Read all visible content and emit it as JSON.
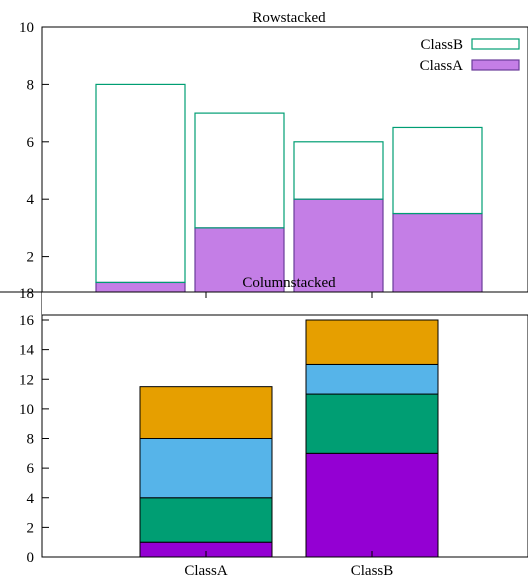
{
  "chart_data": [
    {
      "type": "bar",
      "stacking": "row",
      "title": "Rowstacked",
      "ylim": [
        0,
        10
      ],
      "yticks": [
        2,
        4,
        6,
        8,
        10
      ],
      "grid": false,
      "legend_position": "top-right",
      "bar_count": 4,
      "series": [
        {
          "name": "ClassA",
          "values": [
            1.1,
            3,
            4,
            3.5
          ],
          "fill": "#c47ee6",
          "stroke": "#6a3d9a",
          "filled": true
        },
        {
          "name": "ClassB",
          "values": [
            6.9,
            4,
            2,
            3
          ],
          "fill": "none",
          "stroke": "#009e73",
          "filled": false
        }
      ]
    },
    {
      "type": "bar",
      "stacking": "column",
      "title": "Columnstacked",
      "categories": [
        "ClassA",
        "ClassB"
      ],
      "ylim": [
        0,
        16
      ],
      "yticks": [
        0,
        2,
        4,
        6,
        8,
        10,
        12,
        14,
        16,
        18
      ],
      "grid": false,
      "series": [
        {
          "values": [
            1,
            7
          ],
          "color": "#9400d3"
        },
        {
          "values": [
            3,
            4
          ],
          "color": "#009e73"
        },
        {
          "values": [
            4,
            2
          ],
          "color": "#56b4e9"
        },
        {
          "values": [
            3.5,
            3
          ],
          "color": "#e69f00"
        }
      ]
    }
  ]
}
